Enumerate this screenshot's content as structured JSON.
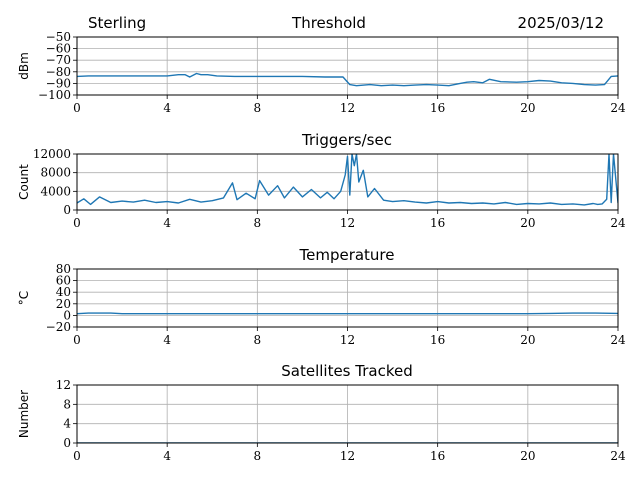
{
  "header": {
    "site": "Sterling",
    "title": "Threshold",
    "date": "2025/03/12"
  },
  "colors": {
    "series": "#1f77b4",
    "grid": "#b0b0b0"
  },
  "chart_data": [
    {
      "type": "line",
      "title": "",
      "xlabel": "",
      "ylabel": "dBm",
      "xlim": [
        0,
        24
      ],
      "ylim": [
        -100,
        -50
      ],
      "x_ticks": [
        "0",
        "4",
        "8",
        "12",
        "16",
        "20",
        "24"
      ],
      "y_ticks": [
        "−50",
        "−60",
        "−70",
        "−80",
        "−90",
        "−100"
      ],
      "y_tick_values": [
        -50,
        -60,
        -70,
        -80,
        -90,
        -100
      ],
      "grid": true,
      "series": [
        {
          "x": [
            0,
            0.5,
            1,
            2,
            3,
            4,
            4.5,
            4.8,
            5.0,
            5.3,
            5.5,
            5.8,
            6.2,
            7,
            8,
            9,
            10,
            11,
            11.8,
            12.1,
            12.4,
            13,
            13.5,
            14,
            14.5,
            15,
            15.5,
            16,
            16.5,
            17,
            17.3,
            17.6,
            18,
            18.3,
            18.8,
            19.5,
            20,
            20.5,
            21,
            21.5,
            22,
            22.5,
            23,
            23.4,
            23.7,
            24
          ],
          "y": [
            -84,
            -83.5,
            -83.5,
            -83.5,
            -83.5,
            -83.5,
            -82.5,
            -82.5,
            -84.5,
            -81.5,
            -82.5,
            -82.5,
            -83.5,
            -84,
            -84,
            -84,
            -84,
            -84.5,
            -84.5,
            -91,
            -92,
            -91,
            -92,
            -91.5,
            -92,
            -91.5,
            -91,
            -91.5,
            -92,
            -90,
            -89,
            -88.5,
            -89.5,
            -86.5,
            -88.5,
            -89,
            -88.5,
            -87.5,
            -88,
            -89.5,
            -90,
            -91,
            -91.5,
            -91,
            -84,
            -83.5
          ]
        }
      ]
    },
    {
      "type": "line",
      "title": "Triggers/sec",
      "xlabel": "",
      "ylabel": "Count",
      "xlim": [
        0,
        24
      ],
      "ylim": [
        0,
        12000
      ],
      "x_ticks": [
        "0",
        "4",
        "8",
        "12",
        "16",
        "20",
        "24"
      ],
      "y_ticks": [
        "12000",
        "8000",
        "4000",
        "0"
      ],
      "y_tick_values": [
        12000,
        8000,
        4000,
        0
      ],
      "grid": true,
      "series": [
        {
          "x": [
            0,
            0.3,
            0.6,
            1.0,
            1.5,
            2.0,
            2.5,
            3.0,
            3.5,
            4.0,
            4.5,
            5.0,
            5.5,
            6.0,
            6.5,
            6.9,
            7.1,
            7.5,
            7.9,
            8.1,
            8.5,
            8.9,
            9.2,
            9.6,
            10.0,
            10.4,
            10.8,
            11.1,
            11.4,
            11.7,
            11.9,
            12.0,
            12.1,
            12.2,
            12.3,
            12.4,
            12.5,
            12.7,
            12.9,
            13.2,
            13.6,
            14.0,
            14.5,
            15.0,
            15.5,
            16.0,
            16.5,
            17.0,
            17.5,
            18.0,
            18.5,
            19.0,
            19.5,
            20.0,
            20.5,
            21.0,
            21.5,
            22.0,
            22.5,
            22.9,
            23.1,
            23.3,
            23.5,
            23.6,
            23.7,
            23.8,
            24.0
          ],
          "y": [
            1500,
            2400,
            1200,
            2800,
            1600,
            1900,
            1700,
            2100,
            1600,
            1800,
            1500,
            2300,
            1700,
            2000,
            2600,
            5800,
            2200,
            3600,
            2400,
            6300,
            3200,
            5200,
            2600,
            4900,
            2800,
            4400,
            2600,
            3800,
            2400,
            4000,
            7500,
            11500,
            3200,
            12000,
            9500,
            12000,
            6000,
            8500,
            2800,
            4600,
            2100,
            1800,
            2000,
            1700,
            1500,
            1800,
            1500,
            1600,
            1400,
            1500,
            1300,
            1600,
            1200,
            1400,
            1300,
            1500,
            1200,
            1300,
            1100,
            1400,
            1200,
            1300,
            2300,
            12000,
            1600,
            12000,
            1500
          ]
        }
      ]
    },
    {
      "type": "line",
      "title": "Temperature",
      "xlabel": "",
      "ylabel": "°C",
      "xlim": [
        0,
        24
      ],
      "ylim": [
        -20,
        80
      ],
      "x_ticks": [
        "0",
        "4",
        "8",
        "12",
        "16",
        "20",
        "24"
      ],
      "y_ticks": [
        "80",
        "60",
        "40",
        "20",
        "0",
        "−20"
      ],
      "y_tick_values": [
        80,
        60,
        40,
        20,
        0,
        -20
      ],
      "grid": true,
      "series": [
        {
          "x": [
            0,
            0.5,
            1,
            1.5,
            2,
            3,
            4,
            6,
            8,
            10,
            12,
            14,
            16,
            18,
            20,
            21,
            22,
            23,
            24
          ],
          "y": [
            3,
            4,
            4,
            4,
            3,
            3,
            3,
            3,
            3,
            3,
            3,
            3,
            3,
            3,
            3,
            3.5,
            4,
            4,
            3.5
          ]
        }
      ]
    },
    {
      "type": "line",
      "title": "Satellites Tracked",
      "xlabel": "",
      "ylabel": "Number",
      "xlim": [
        0,
        24
      ],
      "ylim": [
        0,
        12
      ],
      "x_ticks": [
        "0",
        "4",
        "8",
        "12",
        "16",
        "20",
        "24"
      ],
      "y_ticks": [
        "12",
        "8",
        "4",
        "0"
      ],
      "y_tick_values": [
        12,
        8,
        4,
        0
      ],
      "grid": true,
      "series": [
        {
          "x": [
            0,
            24
          ],
          "y": [
            0,
            0
          ]
        }
      ]
    }
  ]
}
